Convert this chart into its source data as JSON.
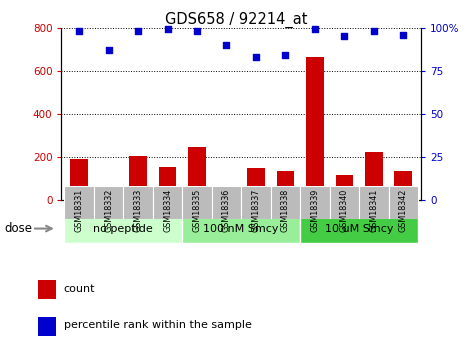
{
  "title": "GDS658 / 92214_at",
  "samples": [
    "GSM18331",
    "GSM18332",
    "GSM18333",
    "GSM18334",
    "GSM18335",
    "GSM18336",
    "GSM18337",
    "GSM18338",
    "GSM18339",
    "GSM18340",
    "GSM18341",
    "GSM18342"
  ],
  "bar_values": [
    190,
    30,
    205,
    155,
    245,
    40,
    150,
    135,
    665,
    115,
    225,
    135
  ],
  "scatter_values": [
    98,
    87,
    98,
    99,
    98,
    90,
    83,
    84,
    99,
    95,
    98,
    96
  ],
  "bar_color": "#cc0000",
  "scatter_color": "#0000cc",
  "ylim_left": [
    0,
    800
  ],
  "ylim_right": [
    0,
    100
  ],
  "yticks_left": [
    0,
    200,
    400,
    600,
    800
  ],
  "yticks_right": [
    0,
    25,
    50,
    75,
    100
  ],
  "yticklabels_right": [
    "0",
    "25",
    "50",
    "75",
    "100%"
  ],
  "groups": [
    {
      "label": "no peptide",
      "start": 0,
      "end": 3,
      "color": "#ccffcc"
    },
    {
      "label": "100 nM Smcy",
      "start": 4,
      "end": 7,
      "color": "#99ee99"
    },
    {
      "label": "10 uM Smcy",
      "start": 8,
      "end": 11,
      "color": "#44cc44"
    }
  ],
  "dose_label": "dose",
  "legend_items": [
    {
      "label": "count",
      "color": "#cc0000"
    },
    {
      "label": "percentile rank within the sample",
      "color": "#0000cc"
    }
  ],
  "tick_area_color": "#bbbbbb",
  "grid_color": "#000000",
  "bar_width": 0.6
}
